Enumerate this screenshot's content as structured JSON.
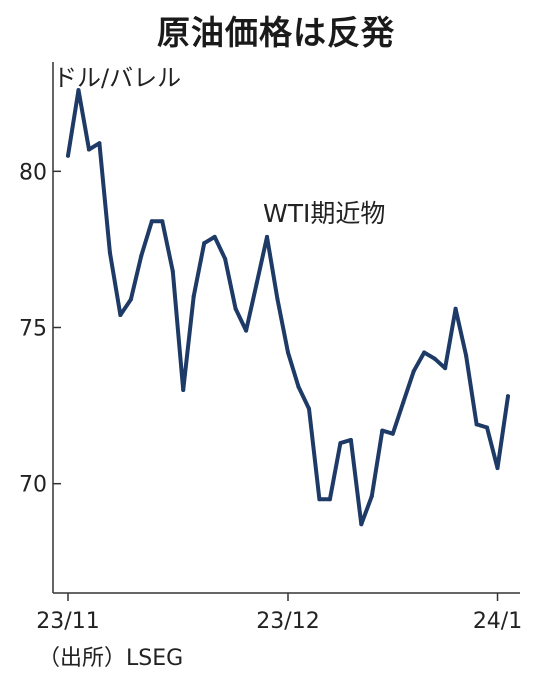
{
  "chart_data": {
    "type": "line",
    "title": "原油価格は反発",
    "ylabel": "ドル/バレル",
    "annotation": "WTI期近物",
    "source": "（出所）LSEG",
    "ylim": [
      66.5,
      83.5
    ],
    "xlim": [
      0,
      45
    ],
    "y_ticks": [
      {
        "value": 70,
        "label": "70"
      },
      {
        "value": 75,
        "label": "75"
      },
      {
        "value": 80,
        "label": "80"
      }
    ],
    "x_ticks": [
      {
        "value": 0,
        "label": "23/11"
      },
      {
        "value": 21,
        "label": "23/12"
      },
      {
        "value": 41,
        "label": "24/1"
      }
    ],
    "grid": false,
    "color": "#1e3a66",
    "series": [
      {
        "name": "",
        "x": [
          0,
          1,
          2,
          3,
          4,
          5,
          6,
          7,
          8,
          9,
          10,
          11,
          12,
          13,
          14,
          15,
          16,
          17,
          18,
          19,
          20,
          21,
          22,
          23,
          24,
          25,
          26,
          27,
          28,
          29,
          30,
          31,
          32,
          33,
          34,
          35,
          36,
          37,
          38,
          39,
          40,
          41,
          42
        ],
        "values": [
          80.5,
          82.6,
          80.7,
          80.9,
          77.4,
          75.4,
          75.9,
          77.3,
          78.4,
          78.4,
          76.8,
          73.0,
          76.0,
          77.7,
          77.9,
          77.2,
          75.6,
          74.9,
          76.4,
          77.9,
          75.9,
          74.2,
          73.1,
          72.4,
          69.5,
          69.5,
          71.3,
          71.4,
          68.7,
          69.6,
          71.7,
          71.6,
          72.6,
          73.6,
          74.2,
          74.0,
          73.7,
          75.6,
          74.1,
          71.9,
          71.8,
          70.5,
          72.8
        ]
      }
    ]
  }
}
